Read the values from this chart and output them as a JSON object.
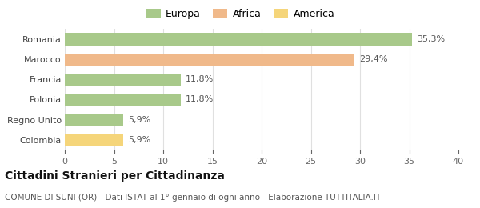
{
  "categories": [
    "Colombia",
    "Regno Unito",
    "Polonia",
    "Francia",
    "Marocco",
    "Romania"
  ],
  "values": [
    5.9,
    5.9,
    11.8,
    11.8,
    29.4,
    35.3
  ],
  "labels": [
    "5,9%",
    "5,9%",
    "11,8%",
    "11,8%",
    "29,4%",
    "35,3%"
  ],
  "colors": [
    "#f5d57a",
    "#a8c98a",
    "#a8c98a",
    "#a8c98a",
    "#f0b98a",
    "#a8c98a"
  ],
  "legend_items": [
    {
      "label": "Europa",
      "color": "#a8c98a"
    },
    {
      "label": "Africa",
      "color": "#f0b98a"
    },
    {
      "label": "America",
      "color": "#f5d57a"
    }
  ],
  "xlim": [
    0,
    40
  ],
  "xticks": [
    0,
    5,
    10,
    15,
    20,
    25,
    30,
    35,
    40
  ],
  "title": "Cittadini Stranieri per Cittadinanza",
  "subtitle": "COMUNE DI SUNI (OR) - Dati ISTAT al 1° gennaio di ogni anno - Elaborazione TUTTITALIA.IT",
  "background_color": "#ffffff",
  "bar_height": 0.6,
  "label_fontsize": 8,
  "title_fontsize": 10,
  "subtitle_fontsize": 7.5,
  "tick_fontsize": 8,
  "legend_fontsize": 9,
  "grid_color": "#e0e0e0"
}
